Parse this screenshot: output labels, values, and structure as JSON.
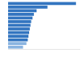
{
  "chart_data": {
    "type": "bar",
    "orientation": "horizontal",
    "categories": [
      null,
      null,
      null,
      null,
      null,
      null,
      null,
      null,
      null,
      null,
      null,
      null,
      null
    ],
    "values": [
      100,
      58,
      42,
      38,
      36,
      34,
      33,
      32,
      31,
      30,
      29,
      27,
      22
    ],
    "colors": [
      "#3375C0",
      "#3375C0",
      "#3375C0",
      "#3375C0",
      "#3375C0",
      "#3375C0",
      "#3375C0",
      "#3375C0",
      "#3375C0",
      "#3375C0",
      "#3375C0",
      "#8AB4E0",
      "#8AB4E0"
    ],
    "xlim": [
      0,
      105
    ],
    "grid": false,
    "tick_labels": false
  }
}
